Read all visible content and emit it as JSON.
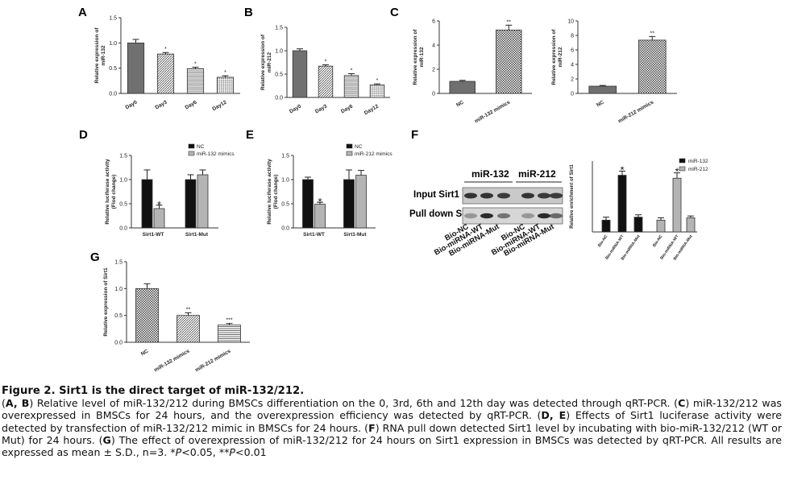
{
  "colors": {
    "dark": "#707070",
    "black": "#111111",
    "light": "#b4b4b4",
    "axis": "#333333"
  },
  "panels": [
    {
      "id": "A",
      "label": "A"
    },
    {
      "id": "B",
      "label": "B"
    },
    {
      "id": "C",
      "label": "C"
    },
    {
      "id": "D",
      "label": "D"
    },
    {
      "id": "E",
      "label": "E"
    },
    {
      "id": "F",
      "label": "F"
    },
    {
      "id": "G",
      "label": "G"
    }
  ],
  "chart_data": [
    {
      "id": "A",
      "type": "bar",
      "ylabel": [
        "Relative expression of",
        "miR-132"
      ],
      "categories": [
        "Day0",
        "Day3",
        "Day6",
        "Day12"
      ],
      "values": [
        1.0,
        0.78,
        0.49,
        0.32
      ],
      "errors": [
        0.07,
        0.03,
        0.03,
        0.03
      ],
      "marks": [
        "",
        "*",
        "*",
        "*"
      ],
      "patterns": [
        "dark",
        "hatch",
        "hlines",
        "dots"
      ],
      "ylim": [
        0,
        1.5
      ],
      "ticks": [
        0.0,
        0.5,
        1.0,
        1.5
      ],
      "tick_labels": [
        "0.0",
        "0.5",
        "1.0",
        "1.5"
      ]
    },
    {
      "id": "B",
      "type": "bar",
      "ylabel": [
        "Relative expression of",
        "miR-212"
      ],
      "categories": [
        "Day0",
        "Day3",
        "Day6",
        "Day12"
      ],
      "values": [
        1.0,
        0.67,
        0.47,
        0.27
      ],
      "errors": [
        0.04,
        0.03,
        0.04,
        0.02
      ],
      "marks": [
        "",
        "*",
        "*",
        "*"
      ],
      "patterns": [
        "dark",
        "hatch",
        "hlines",
        "dots"
      ],
      "ylim": [
        0,
        1.5
      ],
      "ticks": [
        0.0,
        0.5,
        1.0,
        1.5
      ],
      "tick_labels": [
        "0.0",
        "0.5",
        "1.0",
        "1.5"
      ]
    },
    {
      "id": "C1",
      "type": "bar",
      "ylabel": [
        "Relative expression of",
        "miR-132"
      ],
      "categories": [
        "NC",
        "miR-132 mimics"
      ],
      "values": [
        1.0,
        5.25
      ],
      "errors": [
        0.08,
        0.4
      ],
      "marks": [
        "",
        "**"
      ],
      "patterns": [
        "dark",
        "check"
      ],
      "ylim": [
        0,
        6
      ],
      "ticks": [
        0,
        2,
        4,
        6
      ],
      "tick_labels": [
        "0",
        "2",
        "4",
        "6"
      ]
    },
    {
      "id": "C2",
      "type": "bar",
      "ylabel": [
        "Relative expression of",
        "miR-212"
      ],
      "categories": [
        "NC",
        "miR-212 mimics"
      ],
      "values": [
        1.0,
        7.35
      ],
      "errors": [
        0.1,
        0.5
      ],
      "marks": [
        "",
        "**"
      ],
      "patterns": [
        "dark",
        "check"
      ],
      "ylim": [
        0,
        10
      ],
      "ticks": [
        0,
        2,
        4,
        6,
        8,
        10
      ],
      "tick_labels": [
        "0",
        "2",
        "4",
        "6",
        "8",
        "10"
      ]
    },
    {
      "id": "D",
      "type": "bar",
      "ylabel": [
        "Relative luciferase activity",
        "(Flod change)"
      ],
      "categories": [
        "Sirt1-WT",
        "Sirt1-Mut"
      ],
      "series": [
        {
          "name": "NC",
          "values": [
            1.0,
            1.0
          ],
          "errors": [
            0.2,
            0.1
          ],
          "marks": [
            "",
            ""
          ]
        },
        {
          "name": "miR-132 mimics",
          "values": [
            0.4,
            1.1
          ],
          "errors": [
            0.07,
            0.1
          ],
          "marks": [
            "*",
            ""
          ]
        }
      ],
      "ylim": [
        0,
        1.5
      ],
      "ticks": [
        0.0,
        0.5,
        1.0,
        1.5
      ],
      "tick_labels": [
        "0.0",
        "0.5",
        "1.0",
        "1.5"
      ],
      "legend": "top-right"
    },
    {
      "id": "E",
      "type": "bar",
      "ylabel": [
        "Relative luciferase activity",
        "(Flod change)"
      ],
      "categories": [
        "Sirt1-WT",
        "Sirt1-Mut"
      ],
      "series": [
        {
          "name": "NC",
          "values": [
            1.0,
            1.0
          ],
          "errors": [
            0.05,
            0.2
          ],
          "marks": [
            "",
            ""
          ]
        },
        {
          "name": "miR-212 mimics",
          "values": [
            0.49,
            1.09
          ],
          "errors": [
            0.04,
            0.1
          ],
          "marks": [
            "*",
            ""
          ]
        }
      ],
      "ylim": [
        0,
        1.5
      ],
      "ticks": [
        0.0,
        0.5,
        1.0,
        1.5
      ],
      "tick_labels": [
        "0.0",
        "0.5",
        "1.0",
        "1.5"
      ],
      "legend": "top-right"
    },
    {
      "id": "F2",
      "type": "bar",
      "ylabel": [
        "Relative enrichment of Sirt1"
      ],
      "groups": [
        "miR-132",
        "miR-212"
      ],
      "categories": [
        "Bio-NC",
        "Bio-miRNA-WT",
        "Bio-miRNA-Mut",
        "Bio-NC",
        "Bio-miRNA-WT",
        "Bio-miRNA-Mut"
      ],
      "series": [
        {
          "name": "miR-132",
          "values": [
            1.0,
            4.8,
            1.25,
            null,
            null,
            null
          ],
          "errors": [
            0.25,
            0.35,
            0.2,
            null,
            null,
            null
          ],
          "marks": [
            "",
            "*",
            "",
            "",
            "",
            ""
          ]
        },
        {
          "name": "miR-212",
          "values": [
            null,
            null,
            null,
            1.0,
            4.55,
            1.2
          ],
          "errors": [
            null,
            null,
            null,
            0.2,
            0.45,
            0.15
          ],
          "marks": [
            "",
            "",
            "",
            "",
            "*",
            ""
          ]
        }
      ],
      "ylim": [
        0,
        6
      ],
      "legend": "top-right"
    },
    {
      "id": "G",
      "type": "bar",
      "ylabel": [
        "Relative expression of Sirt1"
      ],
      "categories": [
        "NC",
        "miR-132 mimics",
        "miR-212 mimics"
      ],
      "values": [
        1.0,
        0.5,
        0.32
      ],
      "errors": [
        0.09,
        0.05,
        0.03
      ],
      "marks": [
        "",
        "**",
        "***"
      ],
      "patterns": [
        "check",
        "hatch",
        "hlines"
      ],
      "ylim": [
        0,
        1.5
      ],
      "ticks": [
        0.0,
        0.5,
        1.0,
        1.5
      ],
      "tick_labels": [
        "0.0",
        "0.5",
        "1.0",
        "1.5"
      ]
    }
  ],
  "blot": {
    "groups": [
      "miR-132",
      "miR-212"
    ],
    "rows": [
      "Input Sirt1",
      "Pull down Sirt1"
    ],
    "lanes": [
      "Bio-NC",
      "Bio-miRNA-WT",
      "Bio-miRNA-Mut",
      "Bio-NC",
      "Bio-miRNA-WT",
      "Bio-miRNA-Mut"
    ]
  },
  "caption": {
    "title": "Figure 2. Sirt1 is the direct target of miR-132/212.",
    "segments": [
      {
        "t": "(",
        "b": false,
        "i": false
      },
      {
        "t": "A, B",
        "b": true,
        "i": false
      },
      {
        "t": ") Relative level of miR-132/212 during BMSCs differentiation on the 0, 3rd, 6th and 12th day was detected through qRT-PCR. (",
        "b": false,
        "i": false
      },
      {
        "t": "C",
        "b": true,
        "i": false
      },
      {
        "t": ") miR-132/212 was overexpressed in BMSCs for 24 hours, and the overexpression efficiency was detected by qRT-PCR. (",
        "b": false,
        "i": false
      },
      {
        "t": "D, E",
        "b": true,
        "i": false
      },
      {
        "t": ") Effects of Sirt1 luciferase activity were detected by transfection of miR-132/212 mimic in BMSCs for 24 hours. (",
        "b": false,
        "i": false
      },
      {
        "t": "F",
        "b": true,
        "i": false
      },
      {
        "t": ") RNA pull down detected Sirt1 level by incubating with bio-miR-132/212 (WT or Mut) for 24 hours. (",
        "b": false,
        "i": false
      },
      {
        "t": "G",
        "b": true,
        "i": false
      },
      {
        "t": ") The effect of overexpression of miR-132/212 for 24 hours on Sirt1 expression in BMSCs was detected by qRT-PCR. All results are expressed as mean ± S.D., n=3. *",
        "b": false,
        "i": false
      },
      {
        "t": "P",
        "b": false,
        "i": true
      },
      {
        "t": "<0.05, **",
        "b": false,
        "i": false
      },
      {
        "t": "P",
        "b": false,
        "i": true
      },
      {
        "t": "<0.01",
        "b": false,
        "i": false
      }
    ]
  }
}
